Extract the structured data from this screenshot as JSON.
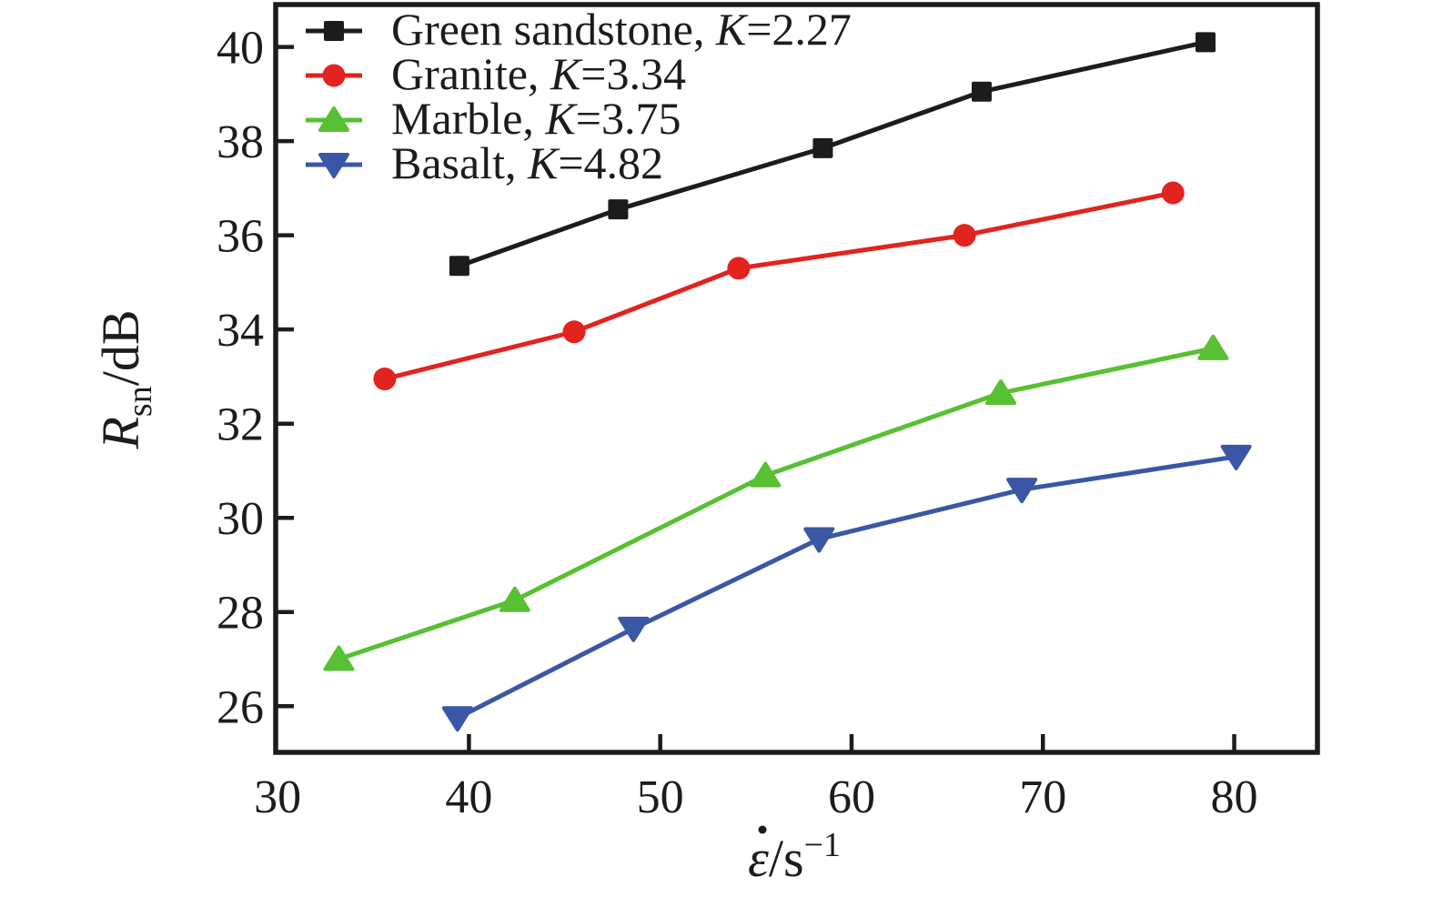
{
  "chart_data": {
    "type": "line",
    "title": "",
    "xlabel": "ε̇/s⁻¹",
    "ylabel": "Rsn/dB",
    "xlabel_parts": {
      "symbol": "ε̇",
      "unit": "/s",
      "exponent": "−1"
    },
    "ylabel_parts": {
      "symbol": "R",
      "subscript": "sn",
      "unit": "/dB"
    },
    "xlim": [
      29.9,
      84.35
    ],
    "ylim": [
      25.02,
      40.9
    ],
    "xticks": [
      30,
      40,
      50,
      60,
      70,
      80
    ],
    "yticks": [
      26,
      28,
      30,
      32,
      34,
      36,
      38,
      40
    ],
    "grid": false,
    "legend_position": "top-left",
    "frame_color": "#1c1c1c",
    "series": [
      {
        "name": "Green sandstone, K=2.27",
        "label_prefix": "Green sandstone, ",
        "k_symbol": "K",
        "k_suffix": "=2.27",
        "color": "#1c1c1c",
        "marker": "square",
        "points": [
          [
            39.5,
            35.35
          ],
          [
            47.8,
            36.55
          ],
          [
            58.5,
            37.85
          ],
          [
            66.8,
            39.05
          ],
          [
            78.5,
            40.1
          ]
        ]
      },
      {
        "name": "Granite, K=3.34",
        "label_prefix": "Granite, ",
        "k_symbol": "K",
        "k_suffix": "=3.34",
        "color": "#e2231e",
        "marker": "circle",
        "points": [
          [
            35.6,
            32.95
          ],
          [
            45.5,
            33.95
          ],
          [
            54.1,
            35.3
          ],
          [
            65.9,
            36.0
          ],
          [
            76.8,
            36.9
          ]
        ]
      },
      {
        "name": "Marble, K=3.75",
        "label_prefix": "Marble, ",
        "k_symbol": "K",
        "k_suffix": "=3.75",
        "color": "#57c033",
        "marker": "triangle-up",
        "points": [
          [
            33.2,
            27.0
          ],
          [
            42.4,
            28.25
          ],
          [
            55.5,
            30.9
          ],
          [
            67.8,
            32.65
          ],
          [
            78.9,
            33.6
          ]
        ]
      },
      {
        "name": "Basalt, K=4.82",
        "label_prefix": "Basalt, ",
        "k_symbol": "K",
        "k_suffix": "=4.82",
        "color": "#3a57a6",
        "marker": "triangle-down",
        "points": [
          [
            39.4,
            25.75
          ],
          [
            48.6,
            27.65
          ],
          [
            58.3,
            29.55
          ],
          [
            68.9,
            30.6
          ],
          [
            80.1,
            31.3
          ]
        ]
      }
    ]
  }
}
